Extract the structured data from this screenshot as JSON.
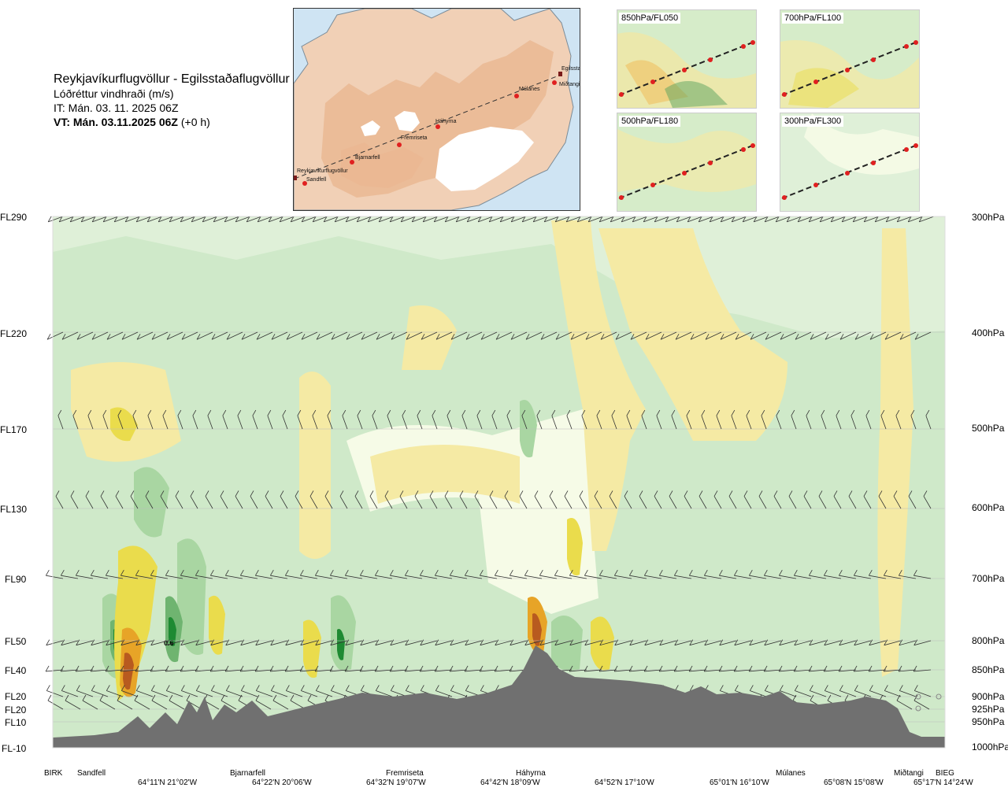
{
  "header": {
    "title": "Reykjavíkurflugvöllur - Egilsstaðaflugvöllur",
    "subtitle": "Lóðréttur vindhraði (m/s)",
    "issue_time": "IT: Mán. 03. 11. 2025 06Z",
    "valid_time_bold": "VT: Mán. 03.11.2025 06Z",
    "valid_time_suffix": "(+0 h)"
  },
  "route_map": {
    "places": [
      "Reykjavíkurflugvöllur",
      "Sandfell",
      "Bjarnarfell",
      "Fremriseta",
      "Háhyrna",
      "Múlanes",
      "Miðtangi",
      "Egilsstaðir"
    ]
  },
  "mini_maps": [
    {
      "label": "850hPa/FL050"
    },
    {
      "label": "700hPa/FL100"
    },
    {
      "label": "500hPa/FL180"
    },
    {
      "label": "300hPa/FL300"
    }
  ],
  "chart_data": {
    "type": "heatmap",
    "variable": "Lóðréttur vindhraði (m/s)",
    "flight_levels": [
      "FL290",
      "FL220",
      "FL170",
      "FL130",
      "FL90",
      "FL50",
      "FL40",
      "FL20",
      "FL20",
      "FL10",
      "FL-10"
    ],
    "pressure_levels": [
      "300hPa",
      "400hPa",
      "500hPa",
      "600hPa",
      "700hPa",
      "800hPa",
      "850hPa",
      "900hPa",
      "925hPa",
      "950hPa",
      "1000hPa"
    ],
    "waypoints": [
      "BIRK",
      "Sandfell",
      "Bjarnarfell",
      "Fremriseta",
      "Háhyrna",
      "Múlanes",
      "Miðtangi",
      "BIEG"
    ],
    "coordinates": [
      "64°11'N 21°02'W",
      "64°22'N 20°06'W",
      "64°32'N 19°07'W",
      "64°42'N 18°09'W",
      "64°52'N 17°10'W",
      "65°01'N 16°10'W",
      "65°08'N 15°08'W",
      "65°17'N 14°24'W"
    ],
    "annotations": [
      "0.6"
    ],
    "colors": {
      "strong_up": "#1e8a32",
      "moderate_up": "#6fb470",
      "weak_up": "#a9d6a2",
      "slight_up": "#cfe9c9",
      "neutral": "#f6fbe7",
      "slight_down": "#f5eaa4",
      "moderate_down": "#eadc4c",
      "strong_down": "#e7a427",
      "very_strong_down": "#b85a1f",
      "terrain": "#707070"
    }
  }
}
